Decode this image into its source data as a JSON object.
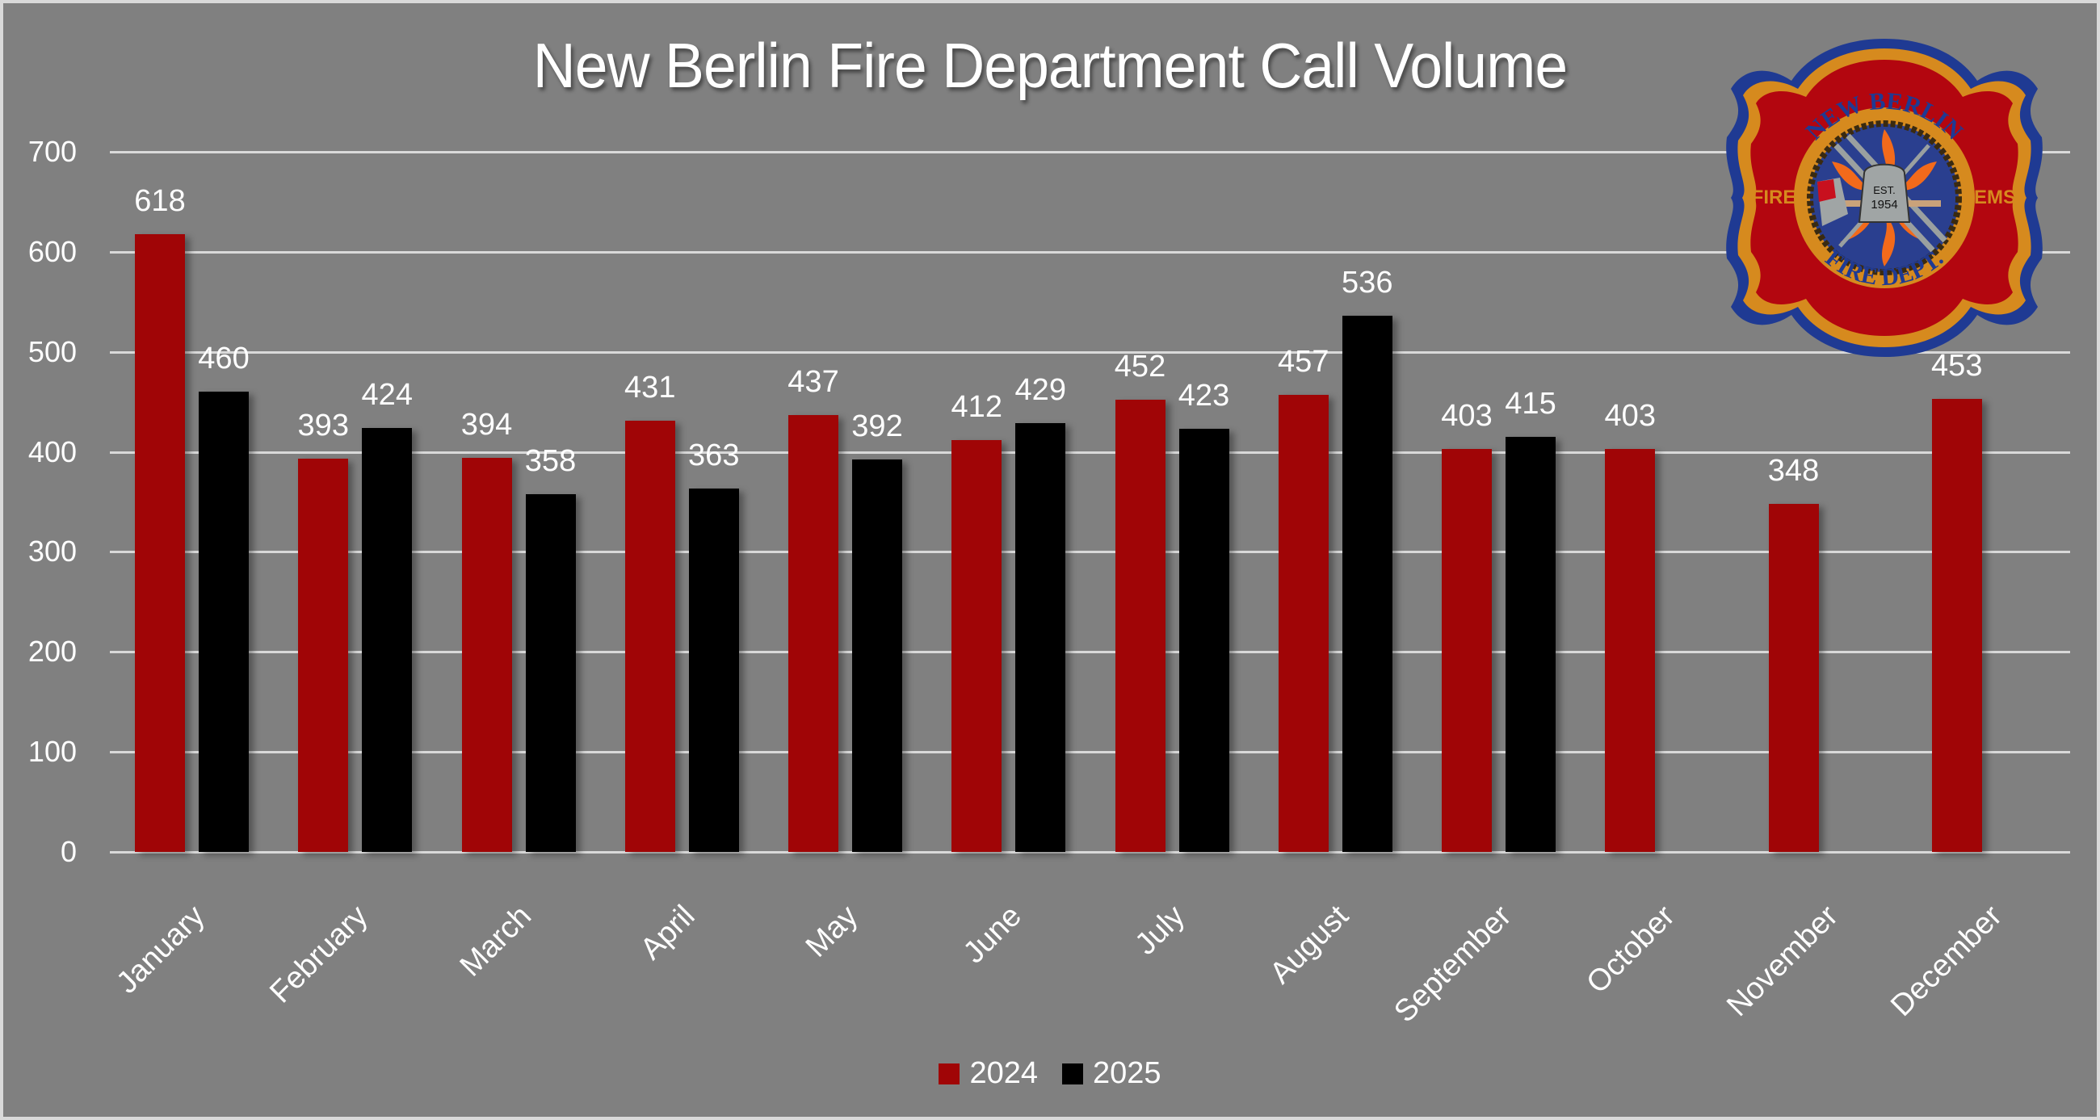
{
  "chart_data": {
    "type": "bar",
    "title": "New Berlin Fire Department Call Volume",
    "xlabel": "",
    "ylabel": "",
    "ylim": [
      0,
      700
    ],
    "yticks": [
      0,
      100,
      200,
      300,
      400,
      500,
      600,
      700
    ],
    "grid": true,
    "legend_position": "bottom",
    "categories": [
      "January",
      "February",
      "March",
      "April",
      "May",
      "June",
      "July",
      "August",
      "September",
      "October",
      "November",
      "December"
    ],
    "series": [
      {
        "name": "2024",
        "color": "#a00506",
        "values": [
          618,
          393,
          394,
          431,
          437,
          412,
          452,
          457,
          403,
          403,
          348,
          453
        ]
      },
      {
        "name": "2025",
        "color": "#000000",
        "values": [
          460,
          424,
          358,
          363,
          392,
          429,
          423,
          536,
          415,
          null,
          null,
          null
        ]
      }
    ],
    "data_labels": true
  },
  "logo": {
    "top_text": "NEW BERLIN",
    "bottom_text": "FIRE DEPT.",
    "left_text": "FIRE",
    "right_text": "EMS",
    "est_label": "EST.",
    "est_year": "1954"
  }
}
